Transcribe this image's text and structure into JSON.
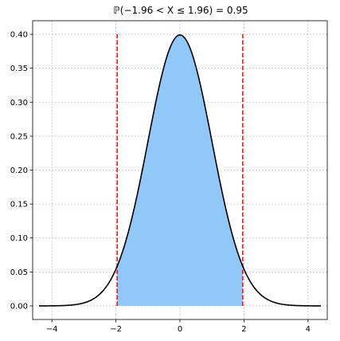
{
  "chart_data": {
    "type": "area",
    "title": "ℙ(−1.96 < X ≤ 1.96) = 0.95",
    "xlabel": "",
    "ylabel": "",
    "xlim": [
      -4.6,
      4.6
    ],
    "ylim": [
      -0.02,
      0.42
    ],
    "grid": true,
    "x_ticks": [
      -4,
      -2,
      0,
      2,
      4
    ],
    "x_tick_labels": [
      "−4",
      "−2",
      "0",
      "2",
      "4"
    ],
    "y_ticks": [
      0.0,
      0.05,
      0.1,
      0.15,
      0.2,
      0.25,
      0.3,
      0.35,
      0.4
    ],
    "y_tick_labels": [
      "0.00",
      "0.05",
      "0.10",
      "0.15",
      "0.20",
      "0.25",
      "0.30",
      "0.35",
      "0.40"
    ],
    "curve": {
      "x": [
        -4.4,
        -4.0,
        -3.6,
        -3.2,
        -2.8,
        -2.4,
        -2.0,
        -1.6,
        -1.2,
        -0.8,
        -0.4,
        0.0,
        0.4,
        0.8,
        1.2,
        1.6,
        2.0,
        2.4,
        2.8,
        3.2,
        3.6,
        4.0,
        4.4
      ],
      "y": [
        0.0,
        0.0001,
        0.0006,
        0.0024,
        0.0079,
        0.0224,
        0.054,
        0.1109,
        0.1942,
        0.2897,
        0.3683,
        0.3989,
        0.3683,
        0.2897,
        0.1942,
        0.1109,
        0.054,
        0.0224,
        0.0079,
        0.0024,
        0.0006,
        0.0001,
        0.0
      ],
      "color": "#000000"
    },
    "shaded_region": {
      "x_from": -1.96,
      "x_to": 1.96,
      "color": "#90c8fa"
    },
    "vertical_lines": [
      {
        "x": -1.96,
        "y_from": 0.0,
        "y_to": 0.4,
        "color": "#ff0000",
        "style": "dashed"
      },
      {
        "x": 1.96,
        "y_from": 0.0,
        "y_to": 0.4,
        "color": "#ff0000",
        "style": "dashed"
      }
    ]
  }
}
